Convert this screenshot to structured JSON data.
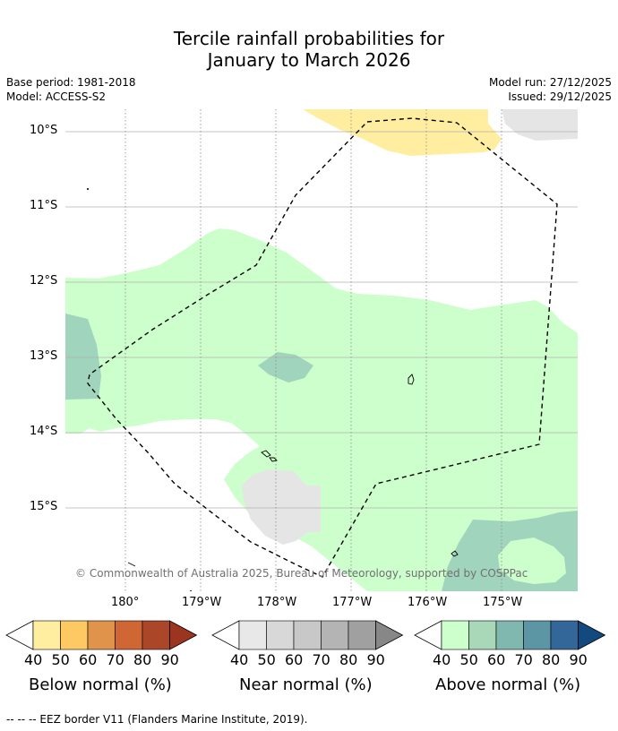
{
  "header": {
    "title_line1": "Tercile rainfall probabilities for",
    "title_line2": "January to March 2026",
    "base_period": "Base period: 1981-2018",
    "model": "Model: ACCESS-S2",
    "model_run": "Model run: 27/12/2025",
    "issued": "Issued: 29/12/2025"
  },
  "map": {
    "lat_labels": [
      "10°S",
      "11°S",
      "12°S",
      "13°S",
      "14°S",
      "15°S"
    ],
    "lon_labels": [
      "180°",
      "179°W",
      "178°W",
      "177°W",
      "176°W",
      "175°W"
    ],
    "copyright": "© Commonwealth of Australia 2025, Bureau of Meteorology, supported by COSPPac",
    "colors": {
      "below_40": "#ffeda0",
      "near_40": "#e5e5e5",
      "above_40": "#ccffcc",
      "above_50": "#a0d4bc"
    }
  },
  "colorbars": [
    {
      "title": "Below normal (%)",
      "ticks": [
        "40",
        "50",
        "60",
        "70",
        "80",
        "90"
      ],
      "colors": [
        "#ffeda0",
        "#fec863",
        "#e0934a",
        "#cf6634",
        "#ab4628",
        "#9b3520"
      ]
    },
    {
      "title": "Near normal (%)",
      "ticks": [
        "40",
        "50",
        "60",
        "70",
        "80",
        "90"
      ],
      "colors": [
        "#e8e8e8",
        "#d8d8d8",
        "#c8c8c8",
        "#b4b4b4",
        "#a0a0a0",
        "#878787"
      ]
    },
    {
      "title": "Above normal (%)",
      "ticks": [
        "40",
        "50",
        "60",
        "70",
        "80",
        "90"
      ],
      "colors": [
        "#ccffcc",
        "#a8d8b8",
        "#80b8b0",
        "#5c96a4",
        "#336699",
        "#124a7f"
      ]
    }
  ],
  "footer": {
    "eez_note": "--  --  -- EEZ border V11 (Flanders Marine Institute, 2019)."
  }
}
